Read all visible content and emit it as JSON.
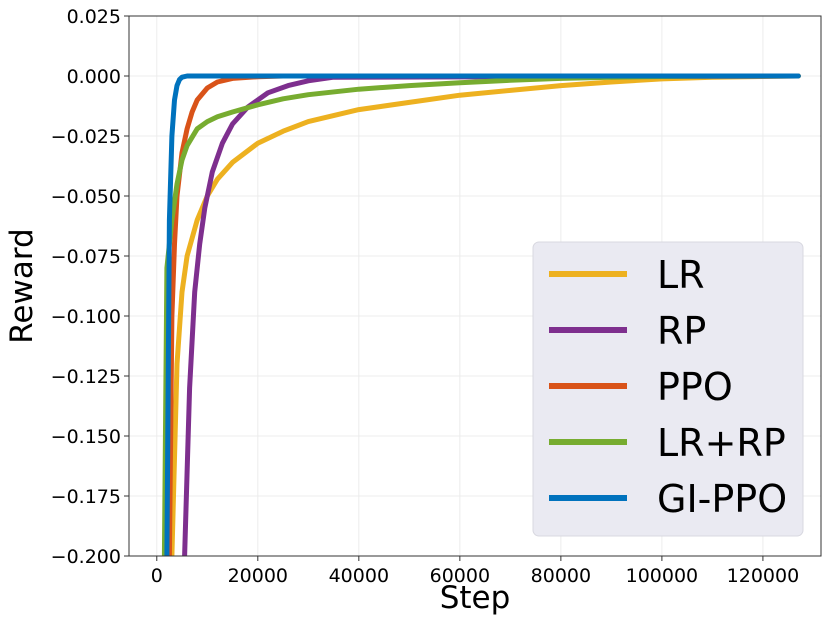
{
  "chart_data": {
    "type": "line",
    "title": "",
    "xlabel": "Step",
    "ylabel": "Reward",
    "xlim": [
      -5500,
      131500
    ],
    "ylim": [
      -0.2,
      0.025
    ],
    "xticks": [
      0,
      20000,
      40000,
      60000,
      80000,
      100000,
      120000
    ],
    "yticks": [
      0.025,
      0.0,
      -0.025,
      -0.05,
      -0.075,
      -0.1,
      -0.125,
      -0.15,
      -0.175,
      -0.2
    ],
    "xtick_labels": [
      "0",
      "20000",
      "40000",
      "60000",
      "80000",
      "100000",
      "120000"
    ],
    "ytick_labels": [
      "0.025",
      "0.000",
      "−0.025",
      "−0.050",
      "−0.075",
      "−0.100",
      "−0.125",
      "−0.150",
      "−0.175",
      "−0.200"
    ],
    "grid": true,
    "legend_position": "lower-right",
    "series": [
      {
        "name": "LR",
        "color": "#EDB120",
        "x": [
          3000,
          4000,
          5000,
          6000,
          8000,
          10000,
          12000,
          15000,
          20000,
          25000,
          30000,
          40000,
          50000,
          60000,
          70000,
          80000,
          90000,
          100000,
          110000,
          120000,
          127000
        ],
        "y": [
          -0.2,
          -0.12,
          -0.09,
          -0.075,
          -0.06,
          -0.05,
          -0.043,
          -0.036,
          -0.028,
          -0.023,
          -0.019,
          -0.014,
          -0.011,
          -0.008,
          -0.006,
          -0.004,
          -0.0025,
          -0.0012,
          -0.0005,
          -0.0002,
          0.0
        ]
      },
      {
        "name": "RP",
        "color": "#7E2F8E",
        "x": [
          5500,
          6500,
          7500,
          8500,
          9500,
          11000,
          13000,
          15000,
          18000,
          22000,
          26000,
          30000,
          35000,
          127000
        ],
        "y": [
          -0.2,
          -0.13,
          -0.09,
          -0.07,
          -0.055,
          -0.04,
          -0.028,
          -0.02,
          -0.013,
          -0.007,
          -0.004,
          -0.002,
          -0.0005,
          0.0
        ]
      },
      {
        "name": "PPO",
        "color": "#D95319",
        "x": [
          2500,
          3000,
          3500,
          4000,
          5000,
          6000,
          7000,
          8000,
          10000,
          12000,
          15000,
          20000,
          25000,
          127000
        ],
        "y": [
          -0.2,
          -0.1,
          -0.07,
          -0.05,
          -0.032,
          -0.022,
          -0.015,
          -0.01,
          -0.005,
          -0.0025,
          -0.001,
          -0.0003,
          0.0,
          0.0
        ]
      },
      {
        "name": "LR+RP",
        "color": "#77AC30",
        "x": [
          1500,
          2000,
          3000,
          4000,
          5000,
          6000,
          8000,
          10000,
          12000,
          15000,
          20000,
          25000,
          30000,
          40000,
          50000,
          60000,
          70000,
          80000,
          90000,
          100000,
          110000,
          127000
        ],
        "y": [
          -0.2,
          -0.08,
          -0.06,
          -0.045,
          -0.035,
          -0.029,
          -0.022,
          -0.019,
          -0.017,
          -0.015,
          -0.012,
          -0.0095,
          -0.0078,
          -0.0055,
          -0.004,
          -0.0028,
          -0.0018,
          -0.001,
          -0.0005,
          -0.0002,
          -5e-05,
          0.0
        ]
      },
      {
        "name": "GI-PPO",
        "color": "#0072BD",
        "x": [
          2000,
          2500,
          3000,
          3500,
          4000,
          4500,
          5000,
          6000,
          127000
        ],
        "y": [
          -0.2,
          -0.06,
          -0.025,
          -0.01,
          -0.004,
          -0.0015,
          -0.0005,
          0.0,
          0.0
        ]
      }
    ]
  }
}
